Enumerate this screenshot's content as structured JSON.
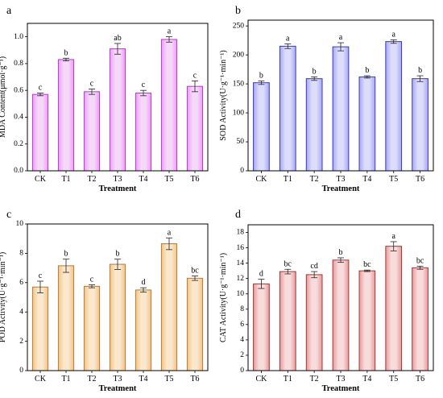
{
  "chart_data": [
    {
      "panel": "a",
      "type": "bar",
      "categories": [
        "CK",
        "T1",
        "T2",
        "T3",
        "T4",
        "T5",
        "T6"
      ],
      "values": [
        0.57,
        0.83,
        0.59,
        0.91,
        0.58,
        0.98,
        0.63
      ],
      "errors": [
        0.01,
        0.01,
        0.02,
        0.04,
        0.02,
        0.02,
        0.04
      ],
      "letters": [
        "c",
        "b",
        "c",
        "ab",
        "c",
        "a",
        "c"
      ],
      "xlabel": "Treatment",
      "ylabel": "MDA Content(μmol·g⁻¹)",
      "ylim": [
        0,
        1.1
      ],
      "yticks": [
        "0.0",
        "0.2",
        "0.4",
        "0.6",
        "0.8",
        "1.0"
      ],
      "colors": {
        "dark": "#b23ad0",
        "light": "#f6d8fb",
        "mid": "#e9a0f3"
      }
    },
    {
      "panel": "b",
      "type": "bar",
      "categories": [
        "CK",
        "T1",
        "T2",
        "T3",
        "T4",
        "T5",
        "T6"
      ],
      "values": [
        152,
        215,
        159,
        214,
        162,
        223,
        159
      ],
      "errors": [
        3,
        4,
        3,
        7,
        2,
        3,
        5
      ],
      "letters": [
        "b",
        "a",
        "b",
        "a",
        "b",
        "a",
        "b"
      ],
      "xlabel": "Treatment",
      "ylabel": "SOD Activity(U·g⁻¹·min⁻¹)",
      "ylim": [
        0,
        260
      ],
      "yticks": [
        "0",
        "50",
        "100",
        "150",
        "200",
        "250"
      ],
      "colors": {
        "dark": "#3838c8",
        "light": "#dcdcfb",
        "mid": "#a8a8f2"
      }
    },
    {
      "panel": "c",
      "type": "bar",
      "categories": [
        "CK",
        "T1",
        "T2",
        "T3",
        "T4",
        "T5",
        "T6"
      ],
      "values": [
        5.7,
        7.15,
        5.75,
        7.25,
        5.5,
        8.65,
        6.3
      ],
      "errors": [
        0.4,
        0.45,
        0.1,
        0.35,
        0.15,
        0.4,
        0.15
      ],
      "letters": [
        "c",
        "b",
        "c",
        "b",
        "d",
        "a",
        "bc"
      ],
      "xlabel": "Treatment",
      "ylabel": "POD Activity(U·g⁻¹·min⁻¹)",
      "ylim": [
        0,
        10
      ],
      "yticks": [
        "0",
        "2",
        "4",
        "6",
        "8",
        "10"
      ],
      "colors": {
        "dark": "#b87b2a",
        "light": "#fbe7cc",
        "mid": "#efc48c"
      }
    },
    {
      "panel": "d",
      "type": "bar",
      "categories": [
        "CK",
        "T1",
        "T2",
        "T3",
        "T4",
        "T5",
        "T6"
      ],
      "values": [
        11.3,
        12.9,
        12.5,
        14.4,
        13.0,
        16.2,
        13.4
      ],
      "errors": [
        0.6,
        0.3,
        0.4,
        0.3,
        0.1,
        0.6,
        0.2
      ],
      "letters": [
        "d",
        "bc",
        "cd",
        "b",
        "bc",
        "a",
        "bc"
      ],
      "xlabel": "Treatment",
      "ylabel": "CAT Activity(U·g⁻¹·min⁻¹)",
      "ylim": [
        0,
        19
      ],
      "yticks": [
        "0",
        "2",
        "4",
        "6",
        "8",
        "10",
        "12",
        "14",
        "16",
        "18"
      ],
      "colors": {
        "dark": "#a83434",
        "light": "#f8dcdc",
        "mid": "#e59c9c"
      }
    }
  ]
}
